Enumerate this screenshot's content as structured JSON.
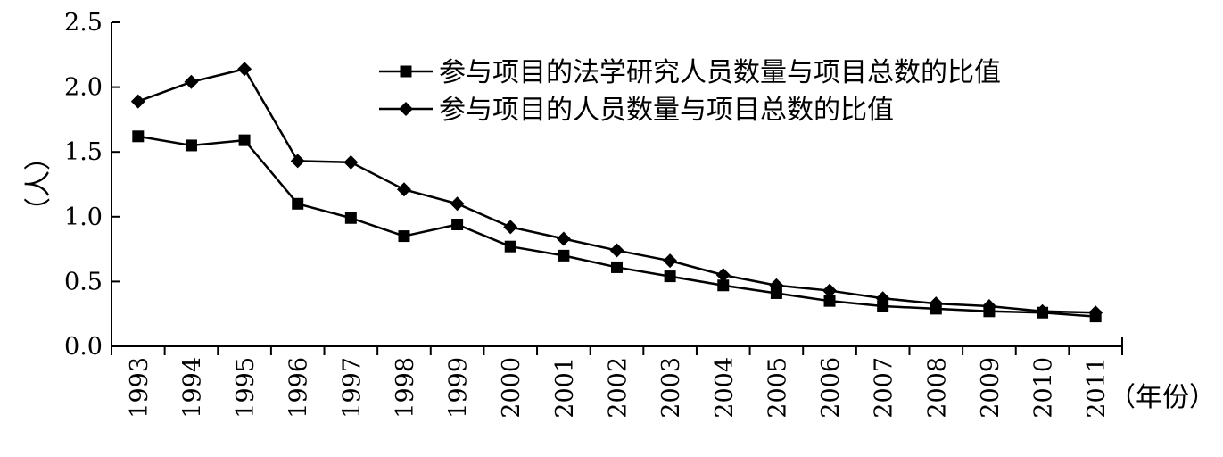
{
  "chart_data": {
    "type": "line",
    "title": "",
    "xlabel": "（年份）",
    "ylabel": "（人）",
    "categories": [
      "1993",
      "1994",
      "1995",
      "1996",
      "1997",
      "1998",
      "1999",
      "2000",
      "2001",
      "2002",
      "2003",
      "2004",
      "2005",
      "2006",
      "2007",
      "2008",
      "2009",
      "2010",
      "2011"
    ],
    "ylim": [
      0,
      2.5
    ],
    "yticks": [
      "0.0",
      "0.5",
      "1.0",
      "1.5",
      "2.0",
      "2.5"
    ],
    "grid": false,
    "legend_position": "top-right",
    "series": [
      {
        "name": "参与项目的法学研究人员数量与项目总数的比值",
        "marker": "square",
        "values": [
          1.62,
          1.55,
          1.59,
          1.1,
          0.99,
          0.85,
          0.94,
          0.77,
          0.7,
          0.61,
          0.54,
          0.47,
          0.41,
          0.35,
          0.31,
          0.29,
          0.27,
          0.26,
          0.23
        ]
      },
      {
        "name": "参与项目的人员数量与项目总数的比值",
        "marker": "diamond",
        "values": [
          1.89,
          2.04,
          2.14,
          1.43,
          1.42,
          1.21,
          1.1,
          0.92,
          0.83,
          0.74,
          0.66,
          0.55,
          0.47,
          0.43,
          0.37,
          0.33,
          0.31,
          0.27,
          0.26
        ]
      }
    ],
    "colors": {
      "line": "#000000",
      "marker": "#000000",
      "axis": "#000000"
    }
  }
}
